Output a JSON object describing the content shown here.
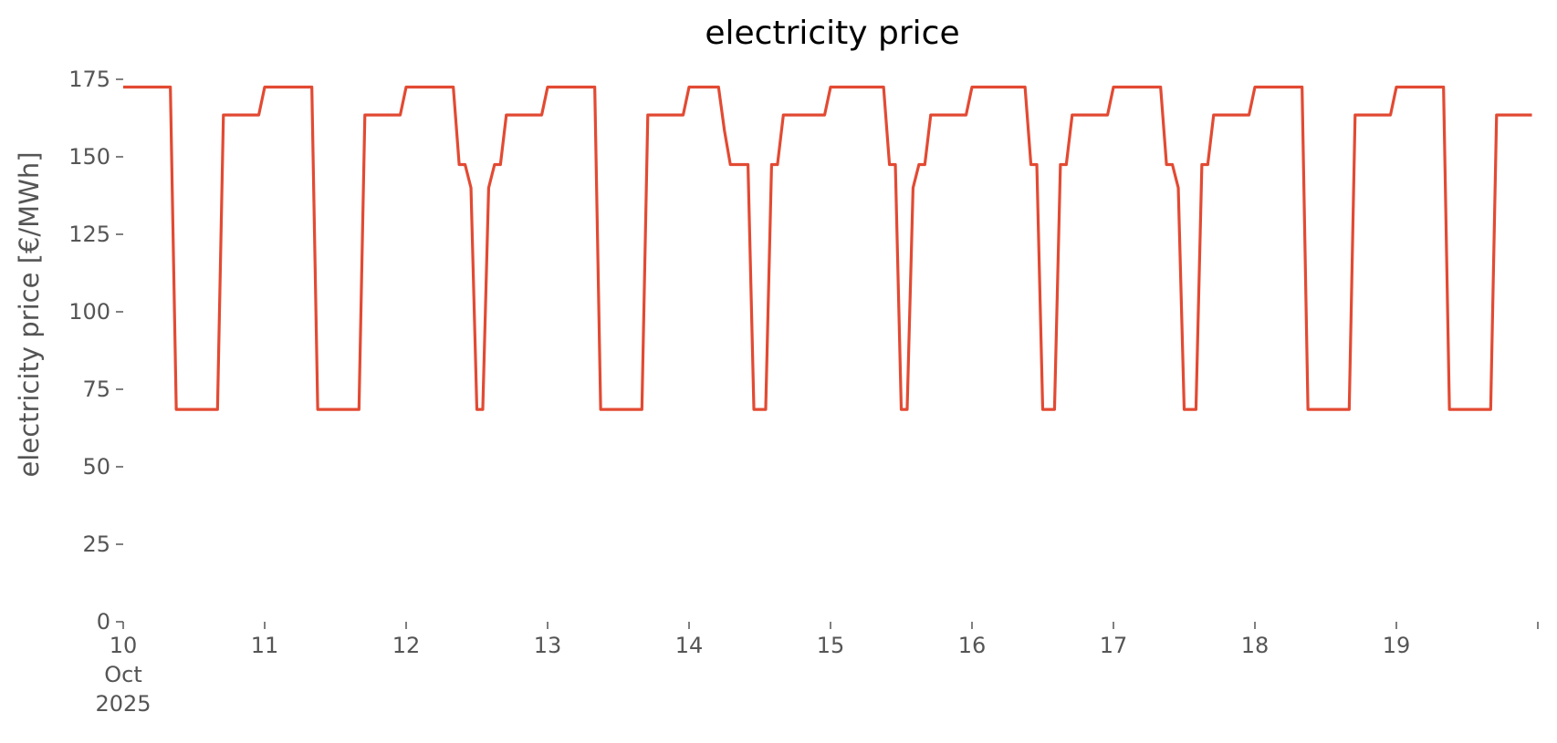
{
  "chart_data": {
    "type": "line",
    "title": "electricity price",
    "y_label": "electricity price [€/MWh]",
    "series": [
      {
        "color": "#E24A33",
        "x": [
          "2025-10-10T00:00",
          "2025-10-10T08:00",
          "2025-10-10T09:00",
          "2025-10-10T16:00",
          "2025-10-10T17:00",
          "2025-10-10T23:00",
          "2025-10-11T00:00",
          "2025-10-11T08:00",
          "2025-10-11T09:00",
          "2025-10-11T16:00",
          "2025-10-11T17:00",
          "2025-10-11T23:00",
          "2025-10-12T00:00",
          "2025-10-12T08:00",
          "2025-10-12T09:00",
          "2025-10-12T10:00",
          "2025-10-12T11:00",
          "2025-10-12T12:00",
          "2025-10-12T13:00",
          "2025-10-12T14:00",
          "2025-10-12T15:00",
          "2025-10-12T16:00",
          "2025-10-12T17:00",
          "2025-10-12T23:00",
          "2025-10-13T00:00",
          "2025-10-13T08:00",
          "2025-10-13T09:00",
          "2025-10-13T16:00",
          "2025-10-13T17:00",
          "2025-10-13T23:00",
          "2025-10-14T00:00",
          "2025-10-14T05:00",
          "2025-10-14T06:00",
          "2025-10-14T07:00",
          "2025-10-14T10:00",
          "2025-10-14T11:00",
          "2025-10-14T13:00",
          "2025-10-14T14:00",
          "2025-10-14T15:00",
          "2025-10-14T16:00",
          "2025-10-14T23:00",
          "2025-10-15T00:00",
          "2025-10-15T09:00",
          "2025-10-15T10:00",
          "2025-10-15T11:00",
          "2025-10-15T12:00",
          "2025-10-15T13:00",
          "2025-10-15T14:00",
          "2025-10-15T15:00",
          "2025-10-15T16:00",
          "2025-10-15T17:00",
          "2025-10-15T23:00",
          "2025-10-16T00:00",
          "2025-10-16T09:00",
          "2025-10-16T10:00",
          "2025-10-16T11:00",
          "2025-10-16T12:00",
          "2025-10-16T14:00",
          "2025-10-16T15:00",
          "2025-10-16T16:00",
          "2025-10-16T17:00",
          "2025-10-16T23:00",
          "2025-10-17T00:00",
          "2025-10-17T08:00",
          "2025-10-17T09:00",
          "2025-10-17T10:00",
          "2025-10-17T11:00",
          "2025-10-17T12:00",
          "2025-10-17T14:00",
          "2025-10-17T15:00",
          "2025-10-17T16:00",
          "2025-10-17T17:00",
          "2025-10-17T23:00",
          "2025-10-18T00:00",
          "2025-10-18T08:00",
          "2025-10-18T09:00",
          "2025-10-18T16:00",
          "2025-10-18T17:00",
          "2025-10-18T23:00",
          "2025-10-19T00:00",
          "2025-10-19T08:00",
          "2025-10-19T09:00",
          "2025-10-19T16:00",
          "2025-10-19T17:00",
          "2025-10-19T23:00"
        ],
        "values": [
          172.5,
          172.5,
          68.5,
          68.5,
          163.5,
          163.5,
          172.5,
          172.5,
          68.5,
          68.5,
          163.5,
          163.5,
          172.5,
          172.5,
          147.5,
          147.5,
          140,
          68.5,
          68.5,
          140,
          147.5,
          147.5,
          163.5,
          163.5,
          172.5,
          172.5,
          68.5,
          68.5,
          163.5,
          163.5,
          172.5,
          172.5,
          158.5,
          147.5,
          147.5,
          68.5,
          68.5,
          147.5,
          147.5,
          163.5,
          163.5,
          172.5,
          172.5,
          147.5,
          147.5,
          68.5,
          68.5,
          140,
          147.5,
          147.5,
          163.5,
          163.5,
          172.5,
          172.5,
          147.5,
          147.5,
          68.5,
          68.5,
          147.5,
          147.5,
          163.5,
          163.5,
          172.5,
          172.5,
          147.5,
          147.5,
          140,
          68.5,
          68.5,
          147.5,
          147.5,
          163.5,
          163.5,
          172.5,
          172.5,
          68.5,
          68.5,
          163.5,
          163.5,
          172.5,
          172.5,
          68.5,
          68.5,
          163.5,
          163.5
        ]
      }
    ],
    "xlim": [
      "2025-10-10T00:00",
      "2025-10-20T00:00"
    ],
    "xticks": [
      {
        "value": "2025-10-10T00:00",
        "label": [
          "10",
          "Oct",
          "2025"
        ]
      },
      {
        "value": "2025-10-11T00:00",
        "label": "11"
      },
      {
        "value": "2025-10-12T00:00",
        "label": "12"
      },
      {
        "value": "2025-10-13T00:00",
        "label": "13"
      },
      {
        "value": "2025-10-14T00:00",
        "label": "14"
      },
      {
        "value": "2025-10-15T00:00",
        "label": "15"
      },
      {
        "value": "2025-10-16T00:00",
        "label": "16"
      },
      {
        "value": "2025-10-17T00:00",
        "label": "17"
      },
      {
        "value": "2025-10-18T00:00",
        "label": "18"
      },
      {
        "value": "2025-10-19T00:00",
        "label": "19"
      },
      {
        "value": "2025-10-20T00:00",
        "label": null
      }
    ],
    "ylim": [
      0,
      175
    ],
    "yticks": [
      0,
      25,
      50,
      75,
      100,
      125,
      150,
      175
    ],
    "grid": false
  }
}
